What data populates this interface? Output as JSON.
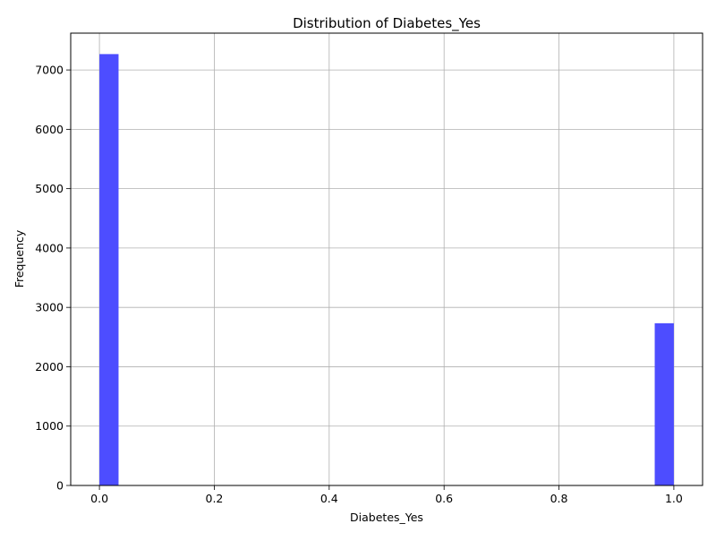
{
  "chart_data": {
    "type": "bar",
    "title": "Distribution of Diabetes_Yes",
    "xlabel": "Diabetes_Yes",
    "ylabel": "Frequency",
    "xlim": [
      -0.05,
      1.05
    ],
    "ylim": [
      0,
      7620
    ],
    "x_ticks": [
      "0.0",
      "0.2",
      "0.4",
      "0.6",
      "0.8",
      "1.0"
    ],
    "y_ticks": [
      "0",
      "1000",
      "2000",
      "3000",
      "4000",
      "5000",
      "6000",
      "7000"
    ],
    "bins": [
      {
        "x0": 0.0,
        "x1": 0.0333,
        "count": 7267
      },
      {
        "x0": 0.9667,
        "x1": 1.0,
        "count": 2733
      }
    ],
    "grid": true,
    "bar_color": "#4d4dff"
  }
}
